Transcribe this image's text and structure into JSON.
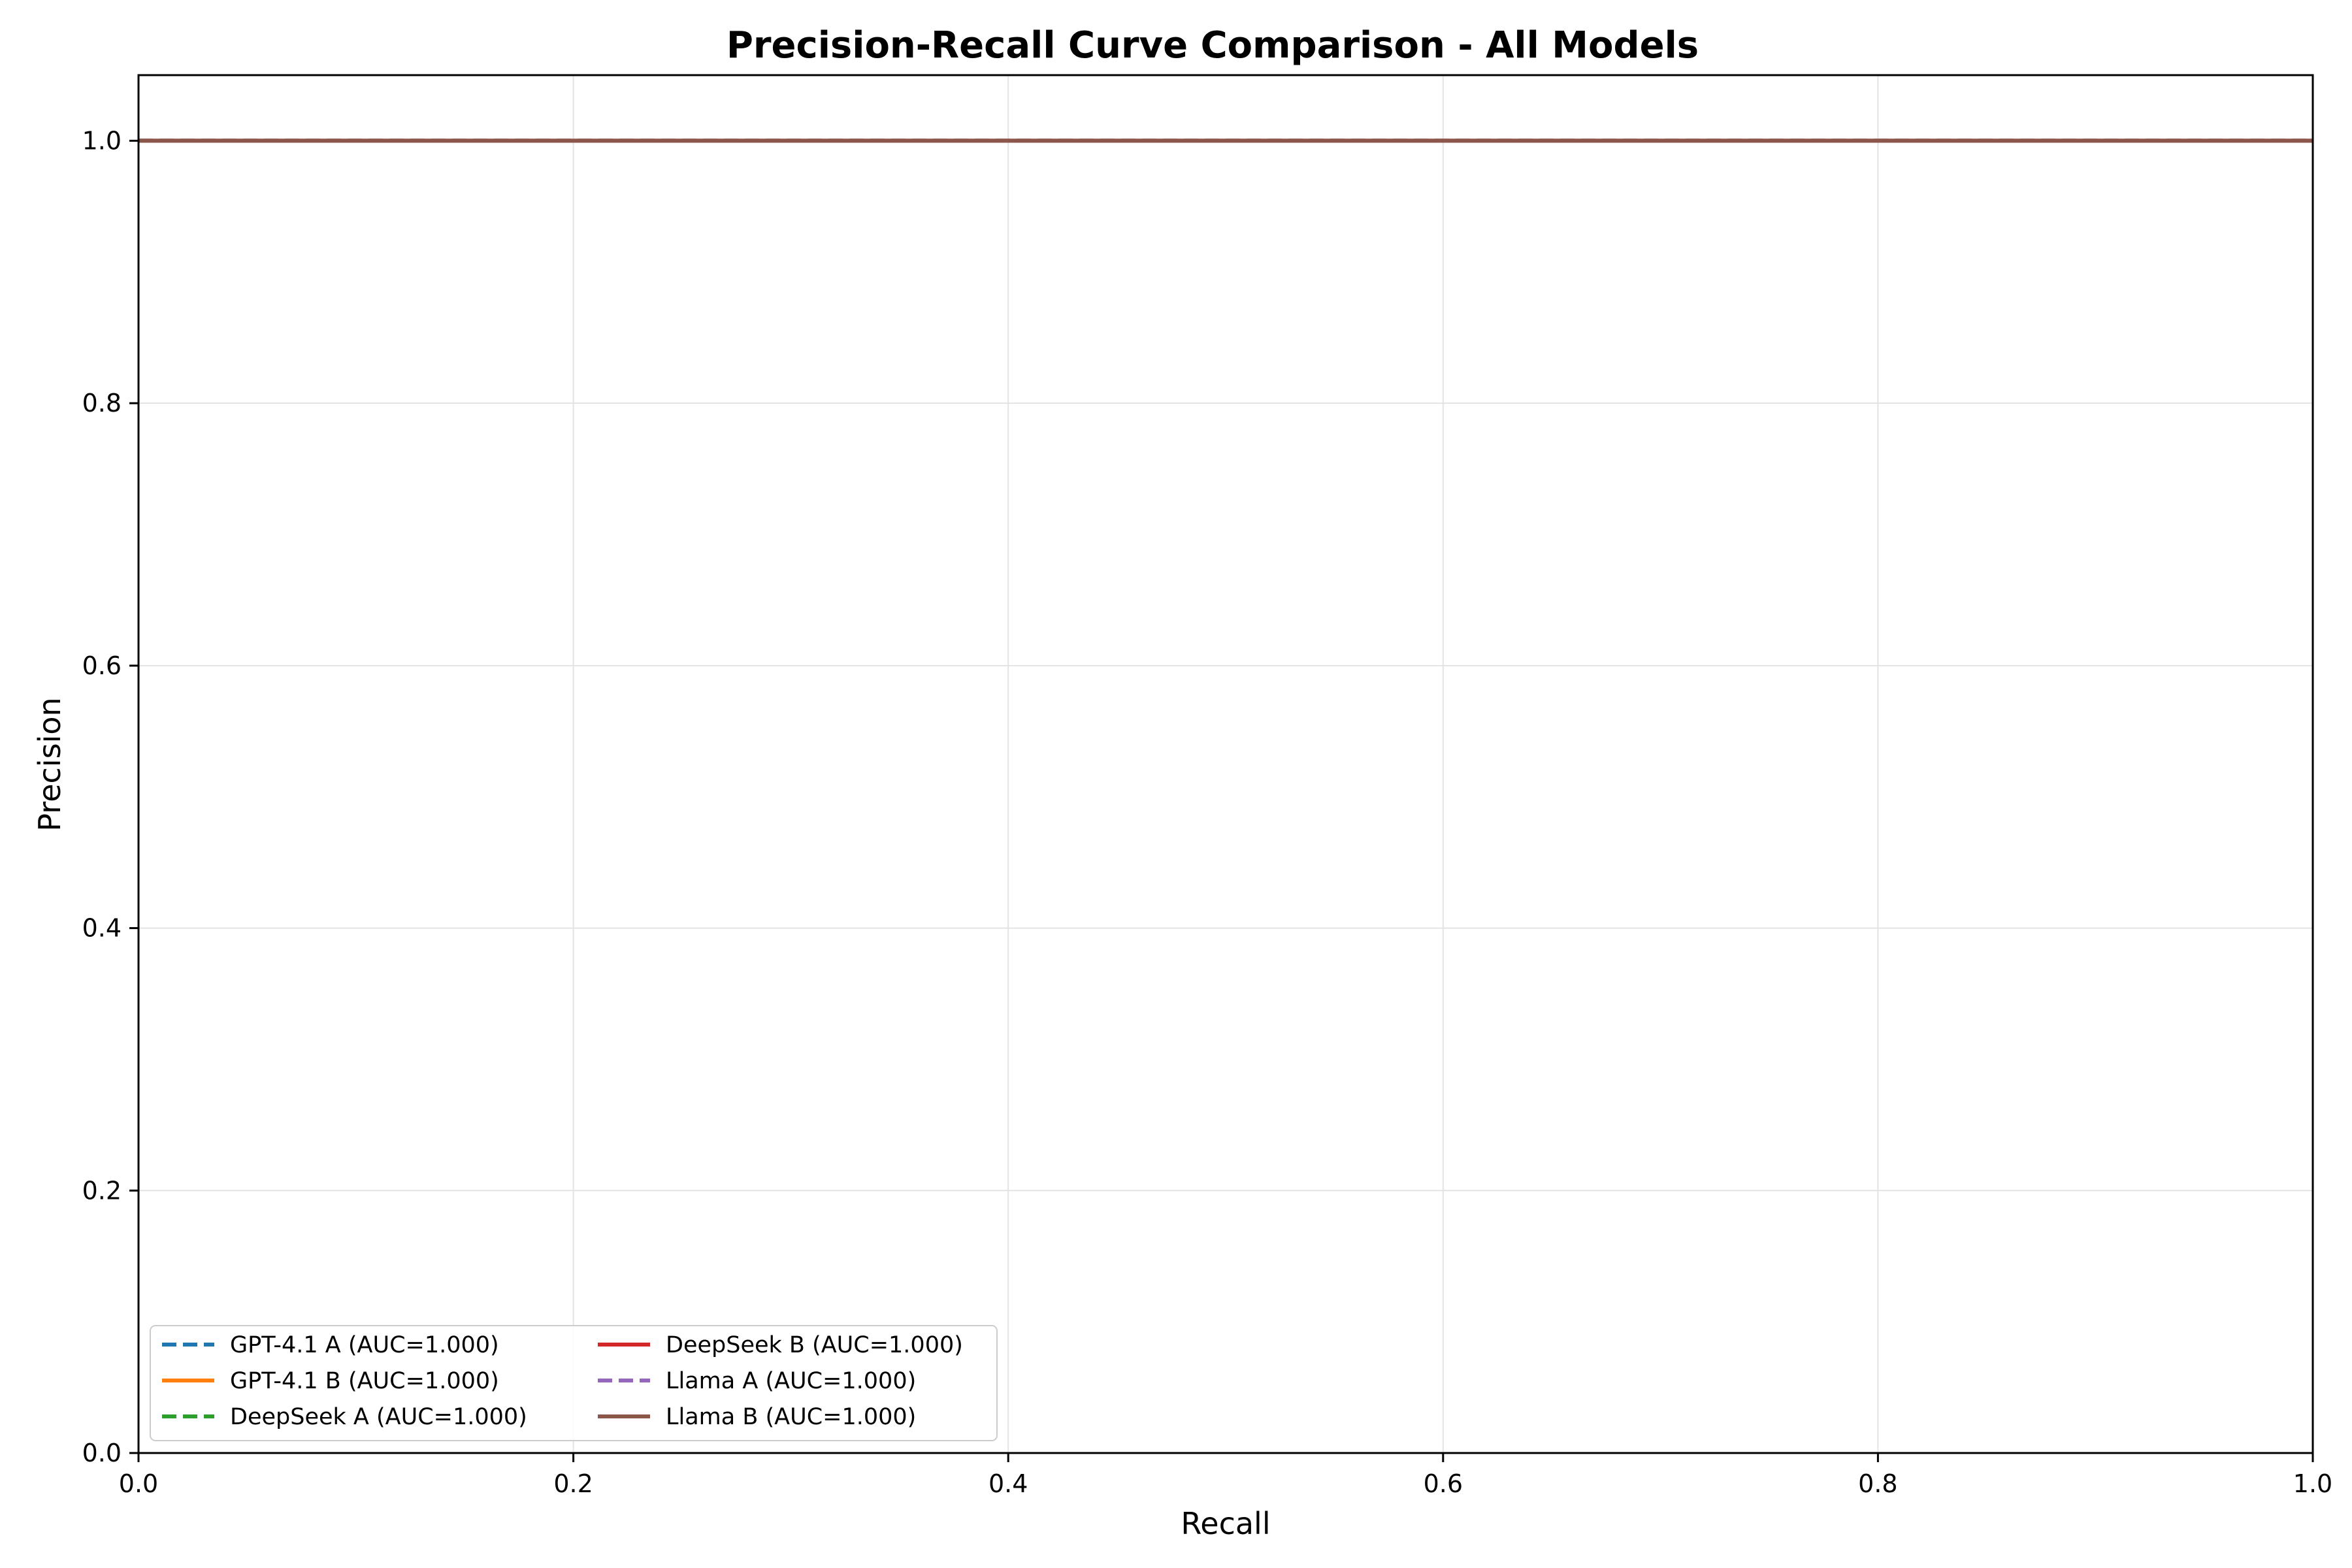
{
  "chart_data": {
    "type": "line",
    "title": "Precision-Recall Curve Comparison - All Models",
    "xlabel": "Recall",
    "ylabel": "Precision",
    "xlim": [
      0.0,
      1.0
    ],
    "ylim": [
      0.0,
      1.05
    ],
    "xticks": [
      0.0,
      0.2,
      0.4,
      0.6,
      0.8,
      1.0
    ],
    "xtick_labels": [
      "0.0",
      "0.2",
      "0.4",
      "0.6",
      "0.8",
      "1.0"
    ],
    "yticks": [
      0.0,
      0.2,
      0.4,
      0.6,
      0.8,
      1.0
    ],
    "ytick_labels": [
      "0.0",
      "0.2",
      "0.4",
      "0.6",
      "0.8",
      "1.0"
    ],
    "grid": true,
    "legend_position": "lower-left",
    "series": [
      {
        "name": "GPT-4.1 A (AUC=1.000)",
        "color": "#1f77b4",
        "dashed": true,
        "x": [
          0.0,
          1.0
        ],
        "y": [
          1.0,
          1.0
        ]
      },
      {
        "name": "GPT-4.1 B (AUC=1.000)",
        "color": "#ff7f0e",
        "dashed": false,
        "x": [
          0.0,
          1.0
        ],
        "y": [
          1.0,
          1.0
        ]
      },
      {
        "name": "DeepSeek A (AUC=1.000)",
        "color": "#2ca02c",
        "dashed": true,
        "x": [
          0.0,
          1.0
        ],
        "y": [
          1.0,
          1.0
        ]
      },
      {
        "name": "DeepSeek B (AUC=1.000)",
        "color": "#d62728",
        "dashed": false,
        "x": [
          0.0,
          1.0
        ],
        "y": [
          1.0,
          1.0
        ]
      },
      {
        "name": "Llama A (AUC=1.000)",
        "color": "#9467bd",
        "dashed": true,
        "x": [
          0.0,
          1.0
        ],
        "y": [
          1.0,
          1.0
        ]
      },
      {
        "name": "Llama B (AUC=1.000)",
        "color": "#8c564b",
        "dashed": false,
        "x": [
          0.0,
          1.0
        ],
        "y": [
          1.0,
          1.0
        ]
      }
    ]
  }
}
